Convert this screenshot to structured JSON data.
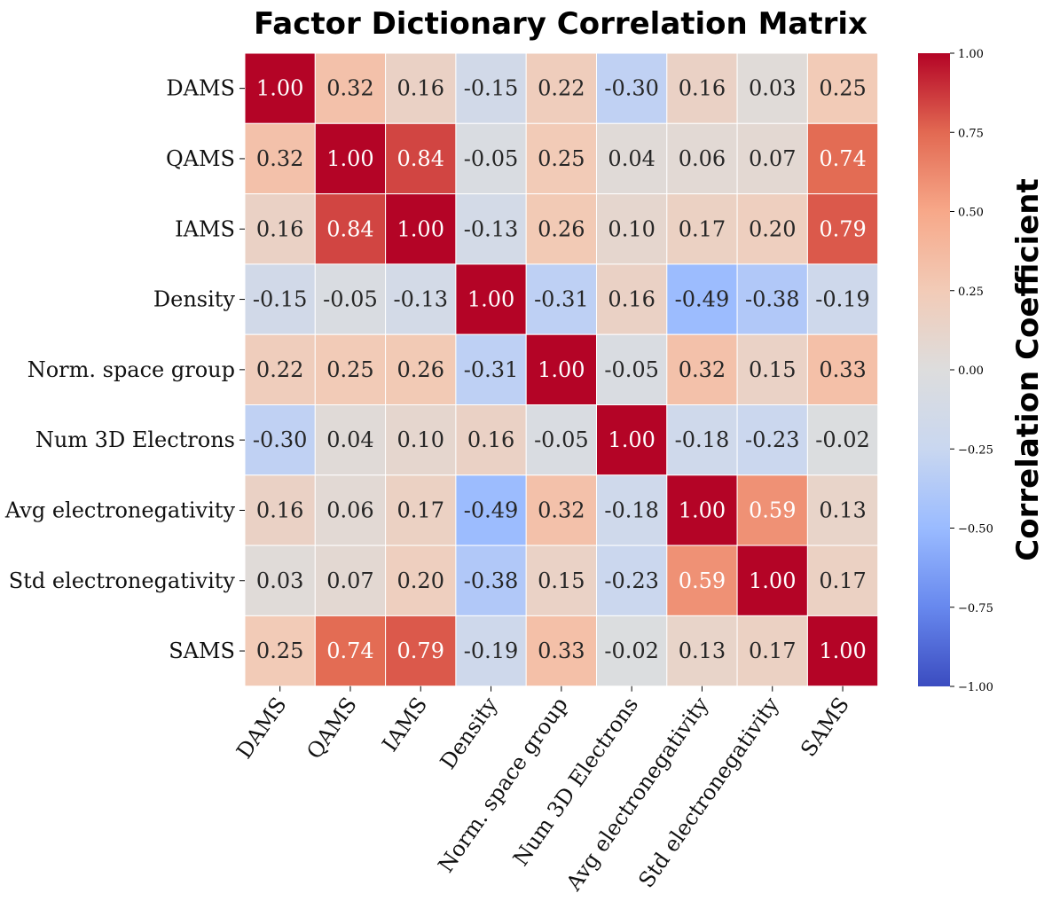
{
  "chart_data": {
    "type": "heatmap",
    "title": "Factor Dictionary Correlation Matrix",
    "row_labels": [
      "DAMS",
      "QAMS",
      "IAMS",
      "Density",
      "Norm. space group",
      "Num 3D Electrons",
      "Avg electronegativity",
      "Std electronegativity",
      "SAMS"
    ],
    "col_labels": [
      "DAMS",
      "QAMS",
      "IAMS",
      "Density",
      "Norm. space group",
      "Num 3D Electrons",
      "Avg electronegativity",
      "Std electronegativity",
      "SAMS"
    ],
    "values": [
      [
        1.0,
        0.32,
        0.16,
        -0.15,
        0.22,
        -0.3,
        0.16,
        0.03,
        0.25
      ],
      [
        0.32,
        1.0,
        0.84,
        -0.05,
        0.25,
        0.04,
        0.06,
        0.07,
        0.74
      ],
      [
        0.16,
        0.84,
        1.0,
        -0.13,
        0.26,
        0.1,
        0.17,
        0.2,
        0.79
      ],
      [
        -0.15,
        -0.05,
        -0.13,
        1.0,
        -0.31,
        0.16,
        -0.49,
        -0.38,
        -0.19
      ],
      [
        0.22,
        0.25,
        0.26,
        -0.31,
        1.0,
        -0.05,
        0.32,
        0.15,
        0.33
      ],
      [
        -0.3,
        0.04,
        0.1,
        0.16,
        -0.05,
        1.0,
        -0.18,
        -0.23,
        -0.02
      ],
      [
        0.16,
        0.06,
        0.17,
        -0.49,
        0.32,
        -0.18,
        1.0,
        0.59,
        0.13
      ],
      [
        0.03,
        0.07,
        0.2,
        -0.38,
        0.15,
        -0.23,
        0.59,
        1.0,
        0.17
      ],
      [
        0.25,
        0.74,
        0.79,
        -0.19,
        0.33,
        -0.02,
        0.13,
        0.17,
        1.0
      ]
    ],
    "vmin": -1.0,
    "vmax": 1.0,
    "colormap": "coolwarm",
    "colorbar": {
      "label": "Correlation Coefficient",
      "ticks": [
        "−1.00",
        "−0.75",
        "−0.50",
        "−0.25",
        "0.00",
        "0.25",
        "0.50",
        "0.75",
        "1.00"
      ],
      "tick_values": [
        -1.0,
        -0.75,
        -0.5,
        -0.25,
        0.0,
        0.25,
        0.5,
        0.75,
        1.0
      ]
    },
    "colormap_stops": [
      "#3b4cc0",
      "#6788ee",
      "#9abbff",
      "#c9d7f0",
      "#dddddd",
      "#f2cbb7",
      "#f7a889",
      "#e26952",
      "#b40426"
    ],
    "cell_border_color": "#ffffff",
    "label_dark_color": "#262626",
    "label_light_color": "#ffffff"
  }
}
